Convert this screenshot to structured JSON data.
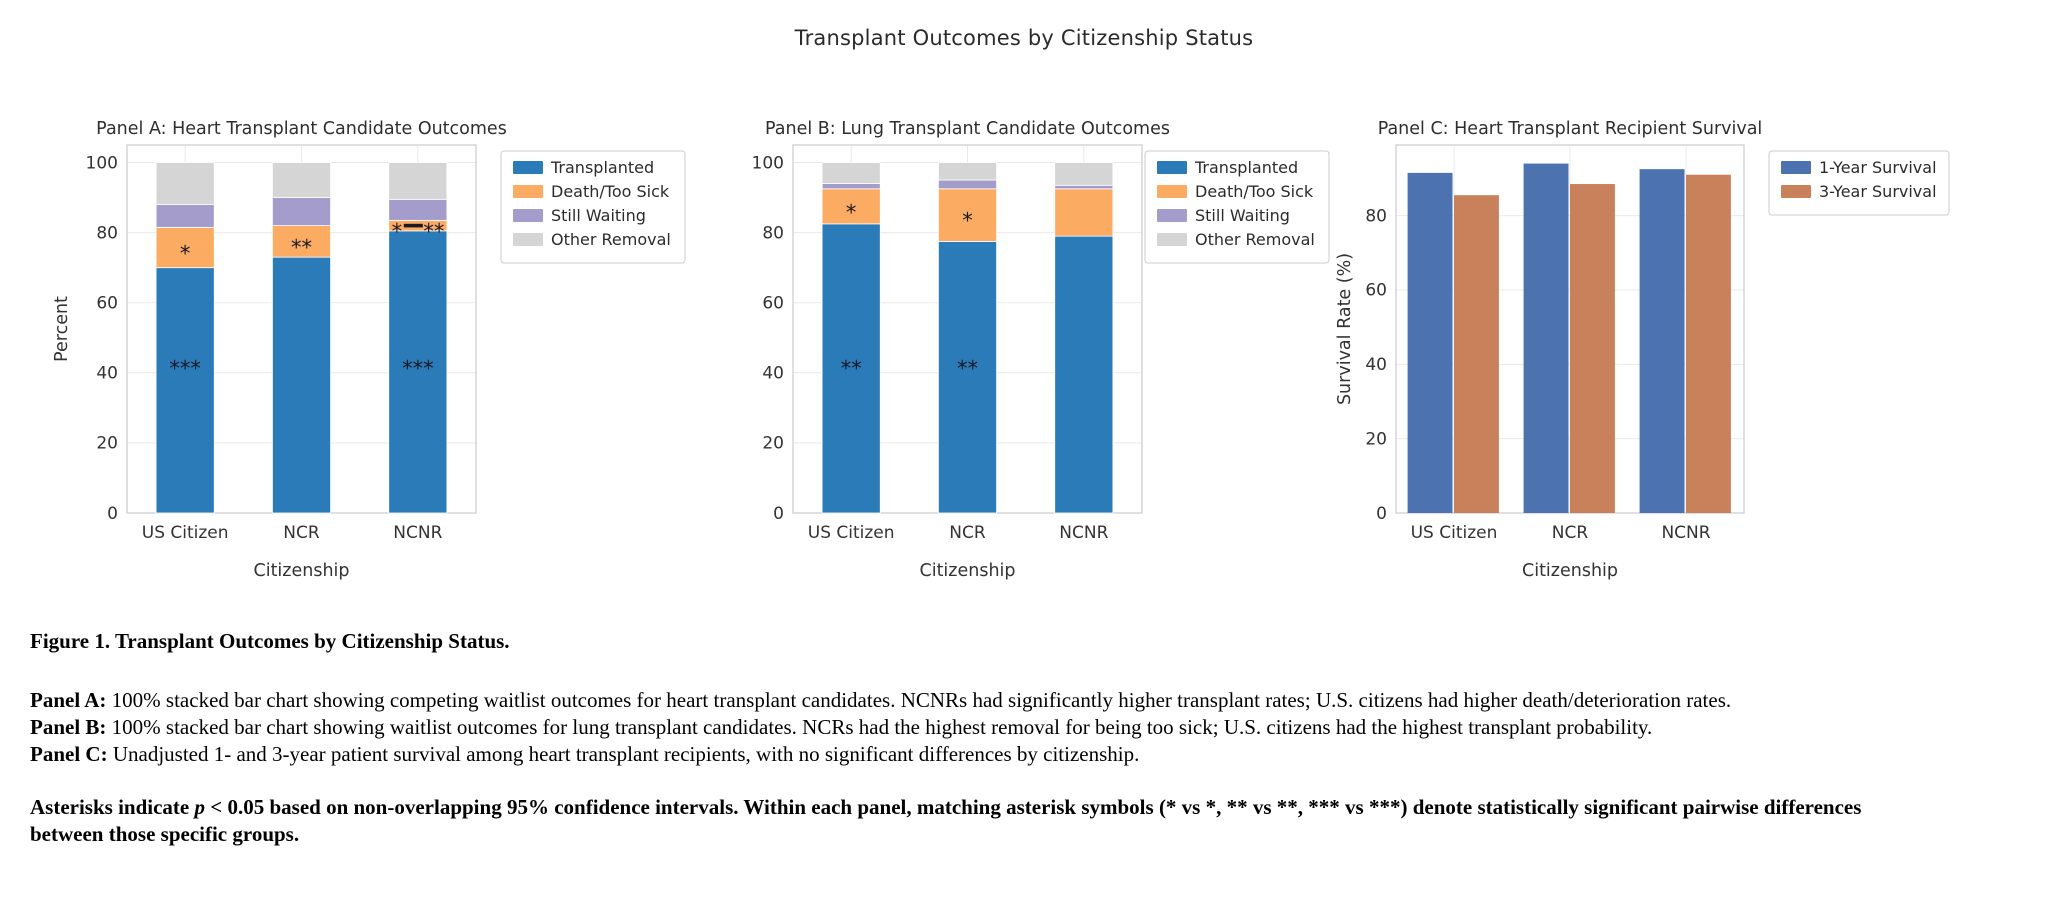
{
  "figure": {
    "title": "Transplant Outcomes by Citizenship Status"
  },
  "colors": {
    "stacked_transplanted": "#2b7bb9",
    "stacked_death_too_sick": "#fbab62",
    "stacked_still_waiting": "#a49dcb",
    "stacked_other_removal": "#d5d5d5",
    "survival_1yr": "#4c72b0",
    "survival_3yr": "#c8815a",
    "marker": "#191922",
    "gridline": "#e7e9ec",
    "plot_border": "#c9cbcf",
    "tick_text": "#333333"
  },
  "chart_data": [
    {
      "id": "panel_a",
      "type": "bar",
      "subtype": "stacked_bar",
      "title": "Panel A: Heart Transplant Candidate Outcomes",
      "xlabel": "Citizenship",
      "ylabel": "Percent",
      "ylim": [
        0,
        105
      ],
      "yticks": [
        0,
        20,
        40,
        60,
        80,
        100
      ],
      "grid": true,
      "legend_position": "outside-right",
      "categories": [
        "US Citizen",
        "NCR",
        "NCNR"
      ],
      "series": [
        {
          "name": "Transplanted",
          "color": "#2b7bb9",
          "values": [
            70,
            73,
            80.5
          ]
        },
        {
          "name": "Death/Too Sick",
          "color": "#fbab62",
          "values": [
            11.5,
            9,
            3
          ]
        },
        {
          "name": "Still Waiting",
          "color": "#a49dcb",
          "values": [
            6.5,
            8,
            6
          ]
        },
        {
          "name": "Other Removal",
          "color": "#d5d5d5",
          "values": [
            12,
            10,
            10.5
          ]
        }
      ],
      "annotations": [
        {
          "category_index": 0,
          "y": 75.8,
          "text": "*"
        },
        {
          "category_index": 0,
          "y": 43,
          "text": "***"
        },
        {
          "category_index": 1,
          "y": 77.5,
          "text": "**"
        },
        {
          "category_index": 2,
          "y": 82,
          "text": "*—**",
          "compound": true
        },
        {
          "category_index": 2,
          "y": 43,
          "text": "***"
        }
      ]
    },
    {
      "id": "panel_b",
      "type": "bar",
      "subtype": "stacked_bar",
      "title": "Panel B: Lung Transplant Candidate Outcomes",
      "xlabel": "Citizenship",
      "ylabel": null,
      "ylim": [
        0,
        105
      ],
      "yticks": [
        0,
        20,
        40,
        60,
        80,
        100
      ],
      "grid": true,
      "legend_position": "outside-right",
      "categories": [
        "US Citizen",
        "NCR",
        "NCNR"
      ],
      "series": [
        {
          "name": "Transplanted",
          "color": "#2b7bb9",
          "values": [
            82.5,
            77.5,
            79
          ]
        },
        {
          "name": "Death/Too Sick",
          "color": "#fbab62",
          "values": [
            10,
            15,
            13.5
          ]
        },
        {
          "name": "Still Waiting",
          "color": "#a49dcb",
          "values": [
            1.5,
            2.5,
            1
          ]
        },
        {
          "name": "Other Removal",
          "color": "#d5d5d5",
          "values": [
            6,
            5,
            6.5
          ]
        }
      ],
      "annotations": [
        {
          "category_index": 0,
          "y": 87.4,
          "text": "*"
        },
        {
          "category_index": 0,
          "y": 43,
          "text": "**"
        },
        {
          "category_index": 1,
          "y": 85.2,
          "text": "*"
        },
        {
          "category_index": 1,
          "y": 43,
          "text": "**"
        }
      ]
    },
    {
      "id": "panel_c",
      "type": "bar",
      "subtype": "grouped_bar",
      "title": "Panel C: Heart Transplant Recipient Survival",
      "xlabel": "Citizenship",
      "ylabel": "Survival Rate (%)",
      "ylim": [
        0,
        99
      ],
      "yticks": [
        0,
        20,
        40,
        60,
        80
      ],
      "grid": true,
      "legend_position": "outside-right",
      "categories": [
        "US Citizen",
        "NCR",
        "NCNR"
      ],
      "series": [
        {
          "name": "1-Year Survival",
          "color": "#4c72b0",
          "values": [
            91.5,
            94,
            92.5
          ]
        },
        {
          "name": "3-Year Survival",
          "color": "#c8815a",
          "values": [
            85.5,
            88.5,
            91
          ]
        }
      ],
      "annotations": []
    }
  ],
  "caption": {
    "heading": "Figure 1. Transplant Outcomes by Citizenship Status.",
    "panel_notes": [
      {
        "label": "Panel A:",
        "text": "100% stacked bar chart showing competing waitlist outcomes for heart transplant candidates. NCNRs had significantly higher transplant rates; U.S. citizens had higher death/deterioration rates."
      },
      {
        "label": "Panel B:",
        "text": "100% stacked bar chart showing waitlist outcomes for lung transplant candidates. NCRs had the highest removal for being too sick; U.S. citizens had the highest transplant probability."
      },
      {
        "label": "Panel C:",
        "text": "Unadjusted 1- and 3-year patient survival among heart transplant recipients, with no significant differences by citizenship."
      }
    ],
    "footnote": {
      "before_p": "Asterisks indicate ",
      "p": "p",
      "after_p": " < 0.05 based on non-overlapping 95% confidence intervals. Within each panel, matching asterisk symbols (* vs *, ** vs **, *** vs ***) denote statistically significant pairwise differences between those specific groups."
    }
  }
}
